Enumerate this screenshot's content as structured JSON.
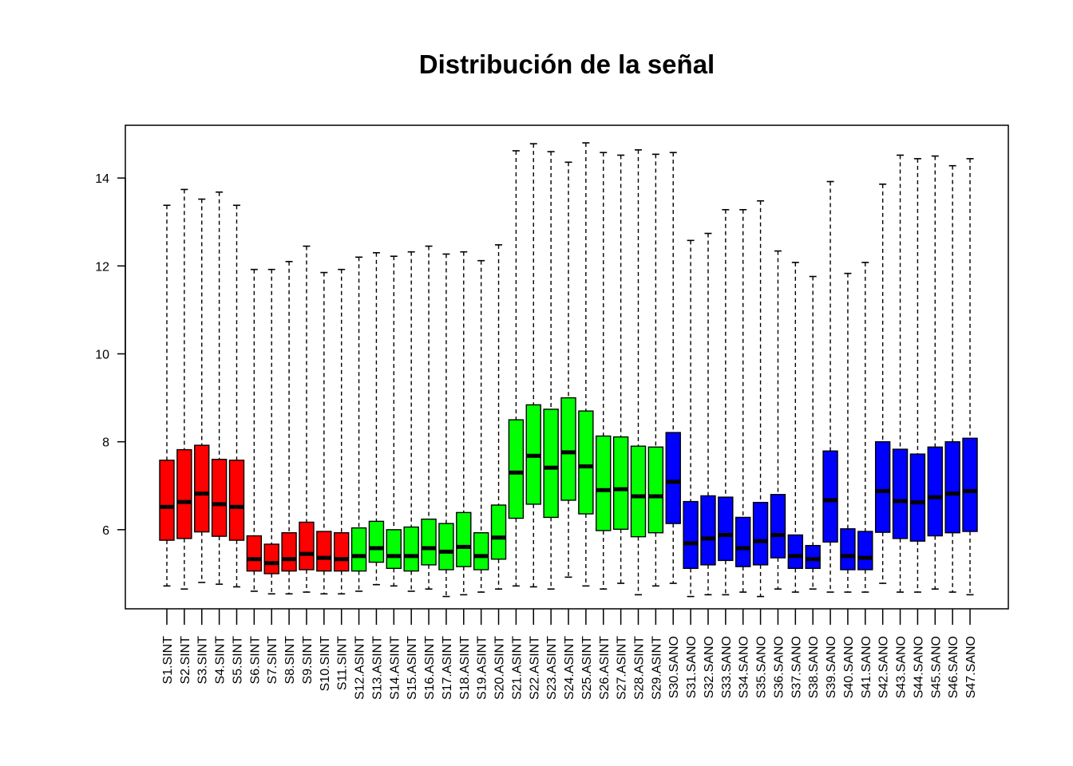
{
  "chart_data": {
    "type": "boxplot",
    "title": "Distribución de la señal",
    "xlabel": "",
    "ylabel": "",
    "ylim": [
      4.2,
      15.2
    ],
    "yticks": [
      6,
      8,
      10,
      12,
      14
    ],
    "group_colors": {
      "SINT": "#ff0000",
      "ASINT": "#00ff00",
      "SANO": "#0000ff"
    },
    "samples": [
      {
        "label": "S1.SINT",
        "group": "SINT",
        "min": 4.72,
        "q1": 5.76,
        "median": 6.52,
        "q3": 7.58,
        "max": 13.38
      },
      {
        "label": "S2.SINT",
        "group": "SINT",
        "min": 4.65,
        "q1": 5.8,
        "median": 6.63,
        "q3": 7.82,
        "max": 13.74
      },
      {
        "label": "S3.SINT",
        "group": "SINT",
        "min": 4.8,
        "q1": 5.95,
        "median": 6.82,
        "q3": 7.92,
        "max": 13.52
      },
      {
        "label": "S4.SINT",
        "group": "SINT",
        "min": 4.76,
        "q1": 5.85,
        "median": 6.58,
        "q3": 7.6,
        "max": 13.68
      },
      {
        "label": "S5.SINT",
        "group": "SINT",
        "min": 4.7,
        "q1": 5.76,
        "median": 6.52,
        "q3": 7.58,
        "max": 13.38
      },
      {
        "label": "S6.SINT",
        "group": "SINT",
        "min": 4.6,
        "q1": 5.06,
        "median": 5.33,
        "q3": 5.86,
        "max": 11.92
      },
      {
        "label": "S7.SINT",
        "group": "SINT",
        "min": 4.54,
        "q1": 5.0,
        "median": 5.24,
        "q3": 5.67,
        "max": 11.92
      },
      {
        "label": "S8.SINT",
        "group": "SINT",
        "min": 4.54,
        "q1": 5.06,
        "median": 5.33,
        "q3": 5.93,
        "max": 12.1
      },
      {
        "label": "S9.SINT",
        "group": "SINT",
        "min": 4.58,
        "q1": 5.09,
        "median": 5.45,
        "q3": 6.17,
        "max": 12.45
      },
      {
        "label": "S10.SINT",
        "group": "SINT",
        "min": 4.54,
        "q1": 5.06,
        "median": 5.36,
        "q3": 5.96,
        "max": 11.85
      },
      {
        "label": "S11.SINT",
        "group": "SINT",
        "min": 4.54,
        "q1": 5.06,
        "median": 5.33,
        "q3": 5.93,
        "max": 11.92
      },
      {
        "label": "S12.ASINT",
        "group": "ASINT",
        "min": 4.6,
        "q1": 5.06,
        "median": 5.4,
        "q3": 6.04,
        "max": 12.2
      },
      {
        "label": "S13.ASINT",
        "group": "ASINT",
        "min": 4.75,
        "q1": 5.26,
        "median": 5.58,
        "q3": 6.19,
        "max": 12.3
      },
      {
        "label": "S14.ASINT",
        "group": "ASINT",
        "min": 4.72,
        "q1": 5.12,
        "median": 5.4,
        "q3": 6.0,
        "max": 12.22
      },
      {
        "label": "S15.ASINT",
        "group": "ASINT",
        "min": 4.6,
        "q1": 5.06,
        "median": 5.4,
        "q3": 6.06,
        "max": 12.32
      },
      {
        "label": "S16.ASINT",
        "group": "ASINT",
        "min": 4.65,
        "q1": 5.2,
        "median": 5.58,
        "q3": 6.24,
        "max": 12.45
      },
      {
        "label": "S17.ASINT",
        "group": "ASINT",
        "min": 4.48,
        "q1": 5.09,
        "median": 5.5,
        "q3": 6.14,
        "max": 12.27
      },
      {
        "label": "S18.ASINT",
        "group": "ASINT",
        "min": 4.52,
        "q1": 5.16,
        "median": 5.61,
        "q3": 6.39,
        "max": 12.32
      },
      {
        "label": "S19.ASINT",
        "group": "ASINT",
        "min": 4.58,
        "q1": 5.09,
        "median": 5.4,
        "q3": 5.93,
        "max": 12.12
      },
      {
        "label": "S20.ASINT",
        "group": "ASINT",
        "min": 4.65,
        "q1": 5.33,
        "median": 5.82,
        "q3": 6.56,
        "max": 12.48
      },
      {
        "label": "S21.ASINT",
        "group": "ASINT",
        "min": 4.72,
        "q1": 6.26,
        "median": 7.3,
        "q3": 8.5,
        "max": 14.62
      },
      {
        "label": "S22.ASINT",
        "group": "ASINT",
        "min": 4.7,
        "q1": 6.58,
        "median": 7.68,
        "q3": 8.84,
        "max": 14.78
      },
      {
        "label": "S23.ASINT",
        "group": "ASINT",
        "min": 4.65,
        "q1": 6.28,
        "median": 7.41,
        "q3": 8.74,
        "max": 14.6
      },
      {
        "label": "S24.ASINT",
        "group": "ASINT",
        "min": 4.92,
        "q1": 6.67,
        "median": 7.76,
        "q3": 9.0,
        "max": 14.36
      },
      {
        "label": "S25.ASINT",
        "group": "ASINT",
        "min": 4.72,
        "q1": 6.36,
        "median": 7.44,
        "q3": 8.7,
        "max": 14.8
      },
      {
        "label": "S26.ASINT",
        "group": "ASINT",
        "min": 4.65,
        "q1": 5.98,
        "median": 6.9,
        "q3": 8.13,
        "max": 14.58
      },
      {
        "label": "S27.ASINT",
        "group": "ASINT",
        "min": 4.78,
        "q1": 6.01,
        "median": 6.92,
        "q3": 8.11,
        "max": 14.52
      },
      {
        "label": "S28.ASINT",
        "group": "ASINT",
        "min": 4.52,
        "q1": 5.84,
        "median": 6.76,
        "q3": 7.9,
        "max": 14.64
      },
      {
        "label": "S29.ASINT",
        "group": "ASINT",
        "min": 4.72,
        "q1": 5.93,
        "median": 6.76,
        "q3": 7.88,
        "max": 14.54
      },
      {
        "label": "S30.SANO",
        "group": "SANO",
        "min": 4.78,
        "q1": 6.14,
        "median": 7.09,
        "q3": 8.21,
        "max": 14.58
      },
      {
        "label": "S31.SANO",
        "group": "SANO",
        "min": 4.48,
        "q1": 5.12,
        "median": 5.69,
        "q3": 6.64,
        "max": 12.58
      },
      {
        "label": "S32.SANO",
        "group": "SANO",
        "min": 4.52,
        "q1": 5.2,
        "median": 5.8,
        "q3": 6.77,
        "max": 12.74
      },
      {
        "label": "S33.SANO",
        "group": "SANO",
        "min": 4.52,
        "q1": 5.3,
        "median": 5.88,
        "q3": 6.74,
        "max": 13.28
      },
      {
        "label": "S34.SANO",
        "group": "SANO",
        "min": 4.58,
        "q1": 5.16,
        "median": 5.58,
        "q3": 6.28,
        "max": 13.28
      },
      {
        "label": "S35.SANO",
        "group": "SANO",
        "min": 4.48,
        "q1": 5.2,
        "median": 5.74,
        "q3": 6.62,
        "max": 13.48
      },
      {
        "label": "S36.SANO",
        "group": "SANO",
        "min": 4.65,
        "q1": 5.36,
        "median": 5.88,
        "q3": 6.8,
        "max": 12.34
      },
      {
        "label": "S37.SANO",
        "group": "SANO",
        "min": 4.58,
        "q1": 5.12,
        "median": 5.4,
        "q3": 5.88,
        "max": 12.08
      },
      {
        "label": "S38.SANO",
        "group": "SANO",
        "min": 4.65,
        "q1": 5.12,
        "median": 5.33,
        "q3": 5.64,
        "max": 11.76
      },
      {
        "label": "S39.SANO",
        "group": "SANO",
        "min": 4.58,
        "q1": 5.72,
        "median": 6.67,
        "q3": 7.79,
        "max": 13.92
      },
      {
        "label": "S40.SANO",
        "group": "SANO",
        "min": 4.58,
        "q1": 5.09,
        "median": 5.4,
        "q3": 6.02,
        "max": 11.83
      },
      {
        "label": "S41.SANO",
        "group": "SANO",
        "min": 4.58,
        "q1": 5.09,
        "median": 5.36,
        "q3": 5.96,
        "max": 12.08
      },
      {
        "label": "S42.SANO",
        "group": "SANO",
        "min": 4.78,
        "q1": 5.94,
        "median": 6.88,
        "q3": 8.0,
        "max": 13.86
      },
      {
        "label": "S43.SANO",
        "group": "SANO",
        "min": 4.58,
        "q1": 5.8,
        "median": 6.65,
        "q3": 7.83,
        "max": 14.52
      },
      {
        "label": "S44.SANO",
        "group": "SANO",
        "min": 4.58,
        "q1": 5.74,
        "median": 6.62,
        "q3": 7.72,
        "max": 14.44
      },
      {
        "label": "S45.SANO",
        "group": "SANO",
        "min": 4.65,
        "q1": 5.86,
        "median": 6.74,
        "q3": 7.88,
        "max": 14.5
      },
      {
        "label": "S46.SANO",
        "group": "SANO",
        "min": 4.58,
        "q1": 5.93,
        "median": 6.82,
        "q3": 8.0,
        "max": 14.28
      },
      {
        "label": "S47.SANO",
        "group": "SANO",
        "min": 4.52,
        "q1": 5.96,
        "median": 6.88,
        "q3": 8.08,
        "max": 14.44
      }
    ]
  }
}
